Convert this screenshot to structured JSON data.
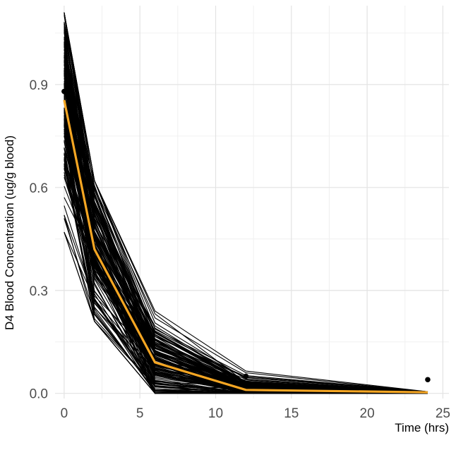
{
  "chart_data": {
    "type": "line",
    "xlabel": "Time (hrs)",
    "ylabel": "D4 Blood Concentration (ug/g blood)",
    "xlim": [
      -0.6,
      25.4
    ],
    "ylim": [
      -0.015,
      1.13
    ],
    "xticks": [
      0,
      5,
      10,
      15,
      20,
      25
    ],
    "yticks": [
      0.0,
      0.3,
      0.6,
      0.9
    ],
    "xtick_labels": [
      "0",
      "5",
      "10",
      "15",
      "20",
      "25"
    ],
    "ytick_labels": [
      "0.0",
      "0.3",
      "0.6",
      "0.9"
    ],
    "grid": true,
    "simulation_times": [
      0,
      2,
      6,
      12,
      24
    ],
    "simulation_count": 150,
    "simulation_ranges": {
      "t0": [
        0.47,
        1.11
      ],
      "t2": [
        0.21,
        0.62
      ],
      "t6": [
        0.0,
        0.24
      ],
      "t12": [
        0.0,
        0.065
      ],
      "t24": [
        0.0,
        0.005
      ]
    },
    "series": [
      {
        "x": [
          0,
          2,
          6,
          12,
          24
        ],
        "y": [
          0.855,
          0.42,
          0.09,
          0.01,
          0.003
        ],
        "color": "#F5A623"
      }
    ],
    "observed_points": {
      "x": [
        0,
        12,
        24
      ],
      "y": [
        0.88,
        0.05,
        0.04
      ],
      "color": "#000000"
    },
    "colors": {
      "simulation_lines": "#000000",
      "median_line": "#F5A623",
      "grid_major": "#e3e3e3",
      "grid_minor": "#f0f0f0",
      "background": "#ffffff"
    }
  }
}
